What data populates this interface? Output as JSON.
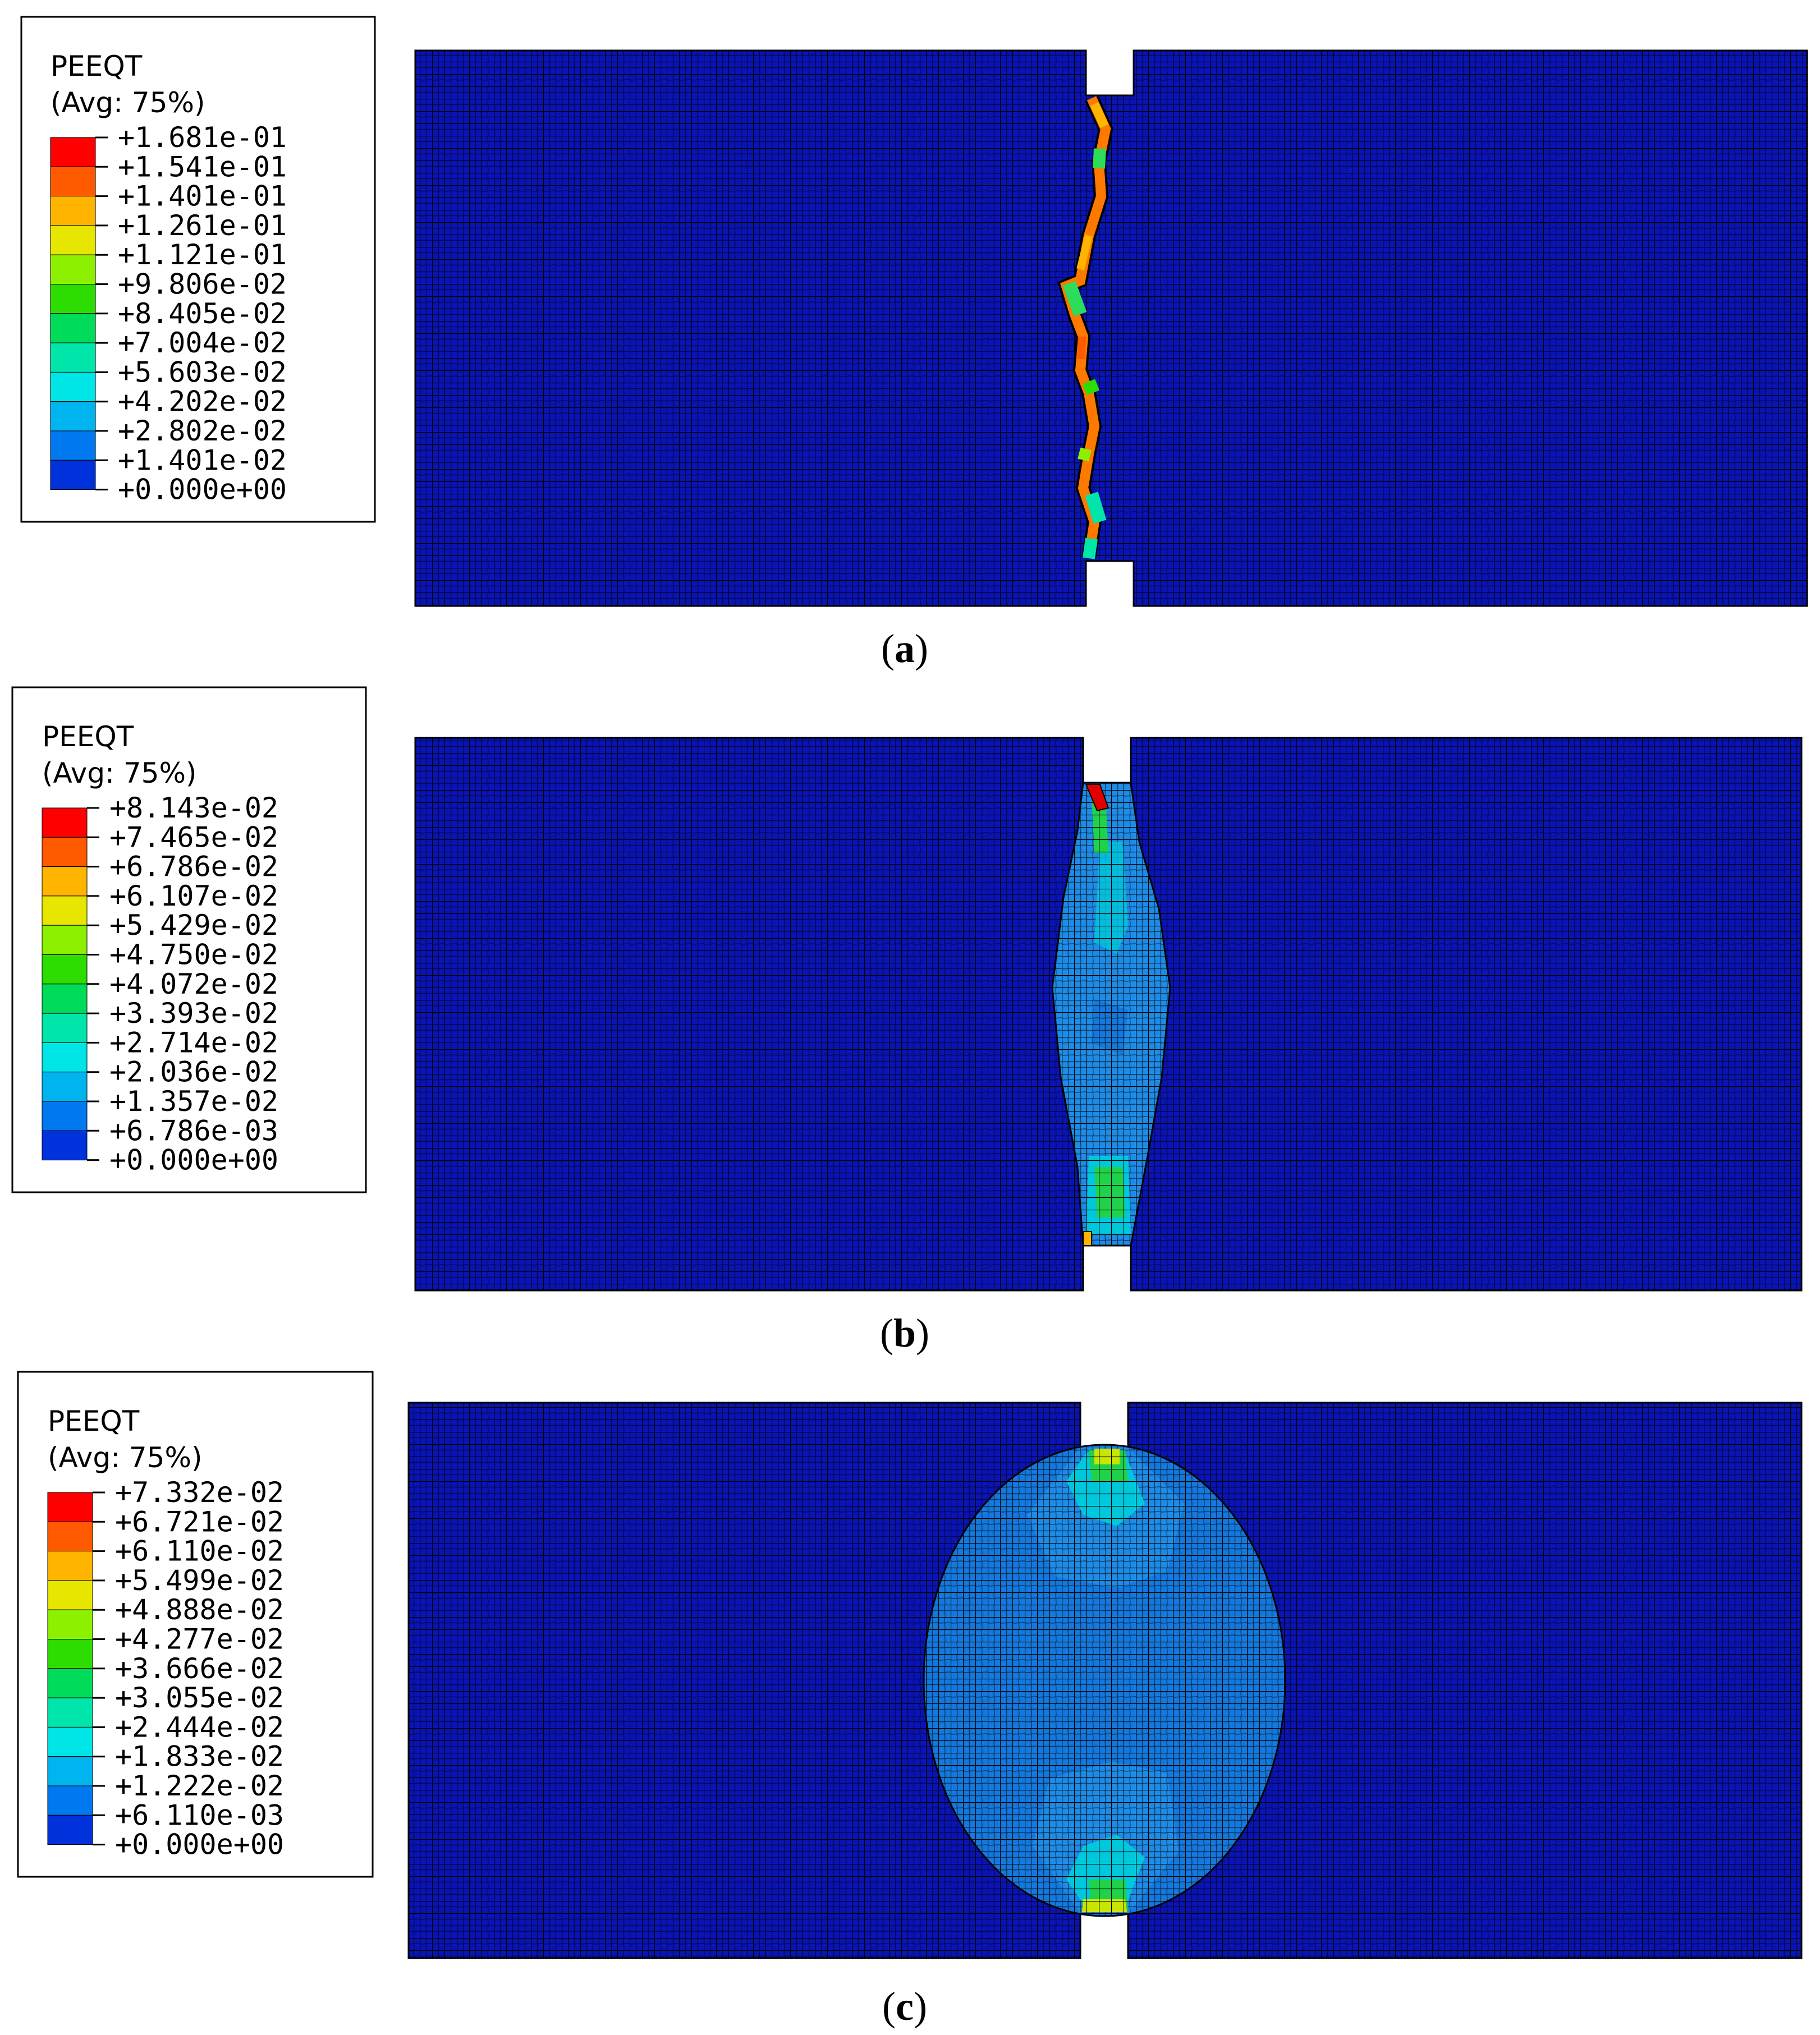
{
  "panels": [
    {
      "id": "a",
      "caption_prefix": "(",
      "caption_letter": "a",
      "caption_suffix": ")",
      "legend": {
        "variable": "PEEQT",
        "averaging": "(Avg: 75%)",
        "values": [
          "+1.681e-01",
          "+1.541e-01",
          "+1.401e-01",
          "+1.261e-01",
          "+1.121e-01",
          "+9.806e-02",
          "+8.405e-02",
          "+7.004e-02",
          "+5.603e-02",
          "+4.202e-02",
          "+2.802e-02",
          "+1.401e-02",
          "+0.000e+00"
        ]
      },
      "damage_pattern": "narrow-crack"
    },
    {
      "id": "b",
      "caption_prefix": "(",
      "caption_letter": "b",
      "caption_suffix": ")",
      "legend": {
        "variable": "PEEQT",
        "averaging": "(Avg: 75%)",
        "values": [
          "+8.143e-02",
          "+7.465e-02",
          "+6.786e-02",
          "+6.107e-02",
          "+5.429e-02",
          "+4.750e-02",
          "+4.072e-02",
          "+3.393e-02",
          "+2.714e-02",
          "+2.036e-02",
          "+1.357e-02",
          "+6.786e-03",
          "+0.000e+00"
        ]
      },
      "damage_pattern": "spindle-band"
    },
    {
      "id": "c",
      "caption_prefix": "(",
      "caption_letter": "c",
      "caption_suffix": ")",
      "legend": {
        "variable": "PEEQT",
        "averaging": "(Avg: 75%)",
        "values": [
          "+7.332e-02",
          "+6.721e-02",
          "+6.110e-02",
          "+5.499e-02",
          "+4.888e-02",
          "+4.277e-02",
          "+3.666e-02",
          "+3.055e-02",
          "+2.444e-02",
          "+1.833e-02",
          "+1.222e-02",
          "+6.110e-03",
          "+0.000e+00"
        ]
      },
      "damage_pattern": "elliptical-zone"
    }
  ],
  "colormap": [
    "#ff0000",
    "#ff5a00",
    "#ffb400",
    "#e6e600",
    "#8cf000",
    "#2ddc00",
    "#00dc5a",
    "#00e6aa",
    "#00e6e6",
    "#00b4f0",
    "#0078f0",
    "#0032dc",
    "#0000e6"
  ],
  "colors": {
    "mesh_fill": "#0a14b4",
    "mesh_line": "#000000",
    "band_light": "#1e8ce6",
    "band_mid": "#1478dc"
  }
}
